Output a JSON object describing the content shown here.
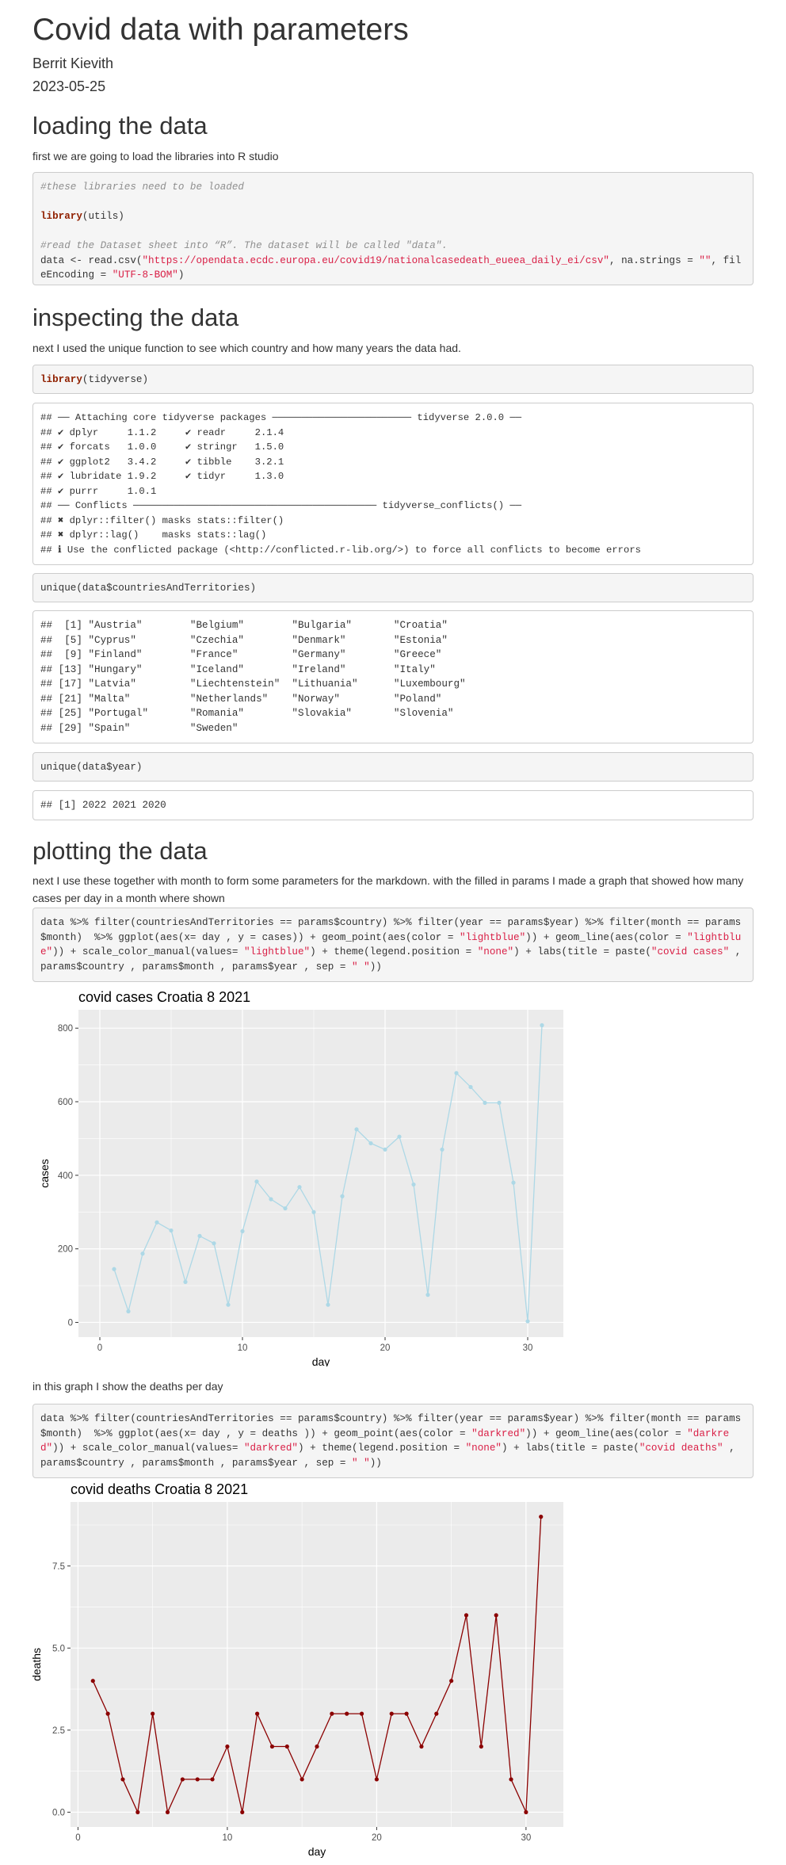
{
  "doc": {
    "title": "Covid data with parameters",
    "author": "Berrit Kievith",
    "date": "2023-05-25"
  },
  "sections": {
    "loading": {
      "heading": "loading the data",
      "intro": "first we are going to load the libraries into R studio",
      "code_comment1": "#these libraries need to be loaded",
      "code_library_kw": "library",
      "code_library_arg": "(utils)",
      "code_comment2": "#read the Dataset sheet into “R”. The dataset will be called \"data\".",
      "code_read_pre": "data <- read.csv(",
      "code_read_url": "\"https://opendata.ecdc.europa.eu/covid19/nationalcasedeath_eueea_daily_ei/csv\"",
      "code_read_mid": ", na.strings = ",
      "code_read_na": "\"\"",
      "code_read_mid2": ", fileEncoding = ",
      "code_read_enc": "\"UTF-8-BOM\"",
      "code_read_end": ")"
    },
    "inspecting": {
      "heading": "inspecting the data",
      "intro": "next I used the unique function to see which country and how many years the data had.",
      "code_library_kw": "library",
      "code_library_arg": "(tidyverse)",
      "tidyverse_output": "## ── Attaching core tidyverse packages ──────────────────────── tidyverse 2.0.0 ──\n## ✔ dplyr     1.1.2     ✔ readr     2.1.4\n## ✔ forcats   1.0.0     ✔ stringr   1.5.0\n## ✔ ggplot2   3.4.2     ✔ tibble    3.2.1\n## ✔ lubridate 1.9.2     ✔ tidyr     1.3.0\n## ✔ purrr     1.0.1     \n## ── Conflicts ────────────────────────────────────────── tidyverse_conflicts() ──\n## ✖ dplyr::filter() masks stats::filter()\n## ✖ dplyr::lag()    masks stats::lag()\n## ℹ Use the conflicted package (<http://conflicted.r-lib.org/>) to force all conflicts to become errors",
      "code_unique_countries": "unique(data$countriesAndTerritories)",
      "countries_output": "##  [1] \"Austria\"        \"Belgium\"        \"Bulgaria\"       \"Croatia\"       \n##  [5] \"Cyprus\"         \"Czechia\"        \"Denmark\"        \"Estonia\"       \n##  [9] \"Finland\"        \"France\"         \"Germany\"        \"Greece\"        \n## [13] \"Hungary\"        \"Iceland\"        \"Ireland\"        \"Italy\"         \n## [17] \"Latvia\"         \"Liechtenstein\"  \"Lithuania\"      \"Luxembourg\"    \n## [21] \"Malta\"          \"Netherlands\"    \"Norway\"         \"Poland\"        \n## [25] \"Portugal\"       \"Romania\"        \"Slovakia\"       \"Slovenia\"      \n## [29] \"Spain\"          \"Sweden\"",
      "code_unique_year": "unique(data$year)",
      "year_output": "## [1] 2022 2021 2020"
    },
    "plotting": {
      "heading": "plotting the data",
      "intro": "next I use these together with month to form some parameters for the markdown. with the filled in params I made a graph that showed how many cases per day in a month where shown",
      "code1_a": "data %>% filter(countriesAndTerritories == params$country) %>% filter(year == params$year) %>% filter(month == params$month)  %>% ggplot(aes(x= day , y = cases)) + geom_point(aes(color = ",
      "code1_s1": "\"lightblue\"",
      "code1_b": ")) + geom_line(aes(color = ",
      "code1_s2": "\"lightblue\"",
      "code1_c": ")) + scale_color_manual(values= ",
      "code1_s3": "\"lightblue\"",
      "code1_d": ") + theme(legend.position = ",
      "code1_s4": "\"none\"",
      "code1_e": ") + labs(title = paste(",
      "code1_s5": "\"covid cases\"",
      "code1_f": " , params$country , params$month , params$year , sep = ",
      "code1_s6": "\" \"",
      "code1_g": "))",
      "between_text": "in this graph I show the deaths per day",
      "code2_a": "data %>% filter(countriesAndTerritories == params$country) %>% filter(year == params$year) %>% filter(month == params$month)  %>% ggplot(aes(x= day , y = deaths )) + geom_point(aes(color = ",
      "code2_s1": "\"darkred\"",
      "code2_b": ")) + geom_line(aes(color = ",
      "code2_s2": "\"darkred\"",
      "code2_c": ")) + scale_color_manual(values= ",
      "code2_s3": "\"darkred\"",
      "code2_d": ") + theme(legend.position = ",
      "code2_s4": "\"none\"",
      "code2_e": ") + labs(title = paste(",
      "code2_s5": "\"covid deaths\"",
      "code2_f": " , params$country , params$month , params$year , sep = ",
      "code2_s6": "\" \"",
      "code2_g": "))"
    }
  },
  "chart_data": [
    {
      "type": "line",
      "title": "covid cases Croatia 8 2021",
      "xlabel": "day",
      "ylabel": "cases",
      "x": [
        1,
        2,
        3,
        4,
        5,
        6,
        7,
        8,
        9,
        10,
        11,
        12,
        13,
        14,
        15,
        16,
        17,
        18,
        19,
        20,
        21,
        22,
        23,
        24,
        25,
        26,
        27,
        28,
        29,
        30,
        31
      ],
      "series": [
        {
          "values": [
            145,
            30,
            187,
            272,
            250,
            110,
            235,
            215,
            48,
            248,
            383,
            335,
            310,
            368,
            300,
            48,
            343,
            525,
            487,
            470,
            505,
            375,
            75,
            470,
            678,
            640,
            597,
            597,
            380,
            3,
            808
          ]
        }
      ],
      "xlim": [
        -1.5,
        32.5
      ],
      "ylim": [
        -40,
        850
      ],
      "xticks": [
        0,
        10,
        20,
        30
      ],
      "yticks": [
        0,
        200,
        400,
        600,
        800
      ],
      "color": "#add8e6",
      "grid": true,
      "legend": "none"
    },
    {
      "type": "line",
      "title": "covid deaths Croatia 8 2021",
      "xlabel": "day",
      "ylabel": "deaths",
      "x": [
        1,
        2,
        3,
        4,
        5,
        6,
        7,
        8,
        9,
        10,
        11,
        12,
        13,
        14,
        15,
        16,
        17,
        18,
        19,
        20,
        21,
        22,
        23,
        24,
        25,
        26,
        27,
        28,
        29,
        30,
        31
      ],
      "series": [
        {
          "values": [
            4,
            3,
            1,
            0,
            3,
            0,
            1,
            1,
            1,
            2,
            0,
            3,
            2,
            2,
            1,
            2,
            3,
            3,
            3,
            1,
            3,
            3,
            2,
            3,
            4,
            6,
            2,
            6,
            1,
            0,
            9
          ]
        }
      ],
      "xlim": [
        -0.5,
        32.5
      ],
      "ylim": [
        -0.45,
        9.45
      ],
      "xticks": [
        0,
        10,
        20,
        30
      ],
      "yticks": [
        0.0,
        2.5,
        5.0,
        7.5
      ],
      "ytick_labels": [
        "0.0",
        "2.5",
        "5.0",
        "7.5"
      ],
      "color": "#8b0000",
      "grid": true,
      "legend": "none"
    }
  ]
}
